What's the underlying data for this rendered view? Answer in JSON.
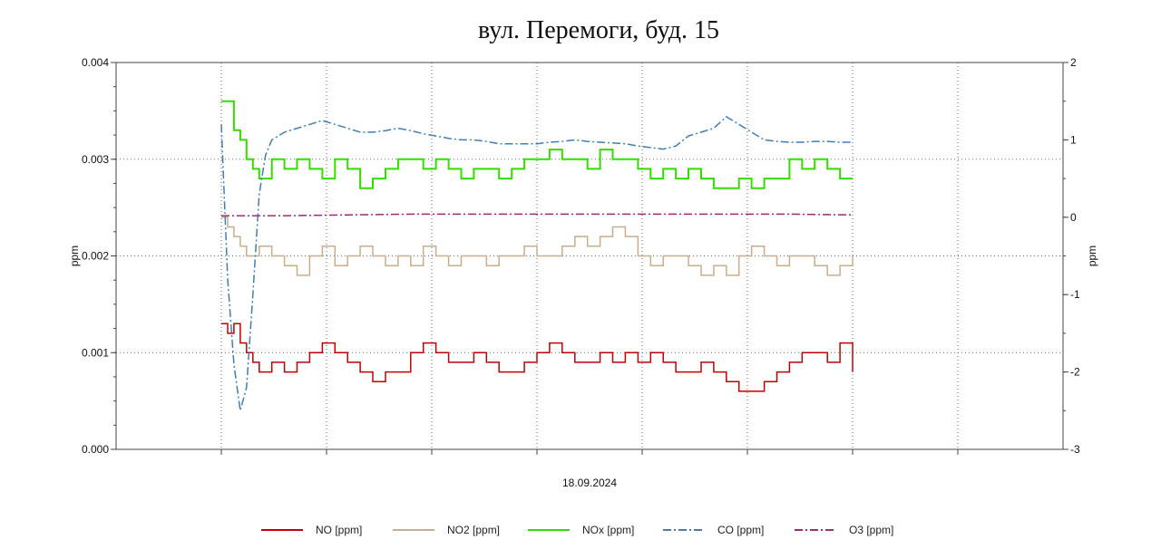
{
  "chart_data": {
    "type": "line",
    "title": "вул. Перемоги, буд. 15",
    "xlabel": "18.09.2024",
    "ylabel_left": "ppm",
    "ylabel_right": "ppm",
    "ylim_left": [
      0,
      0.004
    ],
    "ylim_right": [
      -3,
      2
    ],
    "left_ticks": [
      "0.000",
      "0.001",
      "0.002",
      "0.003",
      "0.004"
    ],
    "right_ticks": [
      "-3",
      "-2",
      "-1",
      "0",
      "1",
      "2"
    ],
    "grid": true,
    "legend_position": "bottom",
    "x_index_range": [
      0,
      100
    ],
    "series": [
      {
        "name": "NO [ppm]",
        "axis": "left",
        "color": "#c00000",
        "style": "solid",
        "x": [
          0,
          1,
          2,
          3,
          4,
          5,
          6,
          8,
          10,
          12,
          14,
          16,
          18,
          20,
          22,
          24,
          26,
          28,
          30,
          32,
          34,
          36,
          38,
          40,
          42,
          44,
          46,
          48,
          50,
          52,
          54,
          56,
          58,
          60,
          62,
          64,
          66,
          68,
          70,
          72,
          74,
          76,
          78,
          80,
          82,
          84,
          86,
          88,
          90,
          92,
          94,
          96,
          98,
          100
        ],
        "values": [
          0.0013,
          0.0012,
          0.0013,
          0.0011,
          0.001,
          0.0009,
          0.0008,
          0.0009,
          0.0008,
          0.0009,
          0.001,
          0.0011,
          0.001,
          0.0009,
          0.0008,
          0.0007,
          0.0008,
          0.0008,
          0.001,
          0.0011,
          0.001,
          0.0009,
          0.0009,
          0.001,
          0.0009,
          0.0008,
          0.0008,
          0.0009,
          0.001,
          0.0011,
          0.001,
          0.0009,
          0.0009,
          0.001,
          0.0009,
          0.001,
          0.0009,
          0.001,
          0.0009,
          0.0008,
          0.0008,
          0.0009,
          0.0008,
          0.0007,
          0.0006,
          0.0006,
          0.0007,
          0.0008,
          0.0009,
          0.001,
          0.001,
          0.0009,
          0.0011,
          0.0008
        ]
      },
      {
        "name": "NO2 [ppm]",
        "axis": "left",
        "color": "#c8ae8a",
        "style": "solid",
        "x": [
          0,
          1,
          2,
          3,
          4,
          6,
          8,
          10,
          12,
          14,
          16,
          18,
          20,
          22,
          24,
          26,
          28,
          30,
          32,
          34,
          36,
          38,
          40,
          42,
          44,
          46,
          48,
          50,
          52,
          54,
          56,
          58,
          60,
          62,
          64,
          66,
          68,
          70,
          72,
          74,
          76,
          78,
          80,
          82,
          84,
          86,
          88,
          90,
          92,
          94,
          96,
          98,
          100
        ],
        "values": [
          0.0024,
          0.0023,
          0.0022,
          0.0021,
          0.002,
          0.0021,
          0.002,
          0.0019,
          0.0018,
          0.002,
          0.0021,
          0.0019,
          0.002,
          0.0021,
          0.002,
          0.0019,
          0.002,
          0.0019,
          0.0021,
          0.002,
          0.0019,
          0.002,
          0.002,
          0.0019,
          0.002,
          0.002,
          0.0021,
          0.002,
          0.002,
          0.0021,
          0.0022,
          0.0021,
          0.0022,
          0.0023,
          0.0022,
          0.002,
          0.0019,
          0.002,
          0.002,
          0.0019,
          0.0018,
          0.0019,
          0.0018,
          0.002,
          0.0021,
          0.002,
          0.0019,
          0.002,
          0.002,
          0.0019,
          0.0018,
          0.0019,
          0.002
        ]
      },
      {
        "name": "NOx [ppm]",
        "axis": "left",
        "color": "#33dd00",
        "style": "solid",
        "x": [
          0,
          1,
          2,
          3,
          4,
          5,
          6,
          8,
          10,
          12,
          14,
          16,
          18,
          20,
          22,
          24,
          26,
          28,
          30,
          32,
          34,
          36,
          38,
          40,
          42,
          44,
          46,
          48,
          50,
          52,
          54,
          56,
          58,
          60,
          62,
          64,
          66,
          68,
          70,
          72,
          74,
          76,
          78,
          80,
          82,
          84,
          86,
          88,
          90,
          92,
          94,
          96,
          98,
          100
        ],
        "values": [
          0.0036,
          0.0036,
          0.0033,
          0.0032,
          0.003,
          0.0029,
          0.0028,
          0.003,
          0.0029,
          0.003,
          0.0029,
          0.0028,
          0.003,
          0.0029,
          0.0027,
          0.0028,
          0.0029,
          0.003,
          0.003,
          0.0029,
          0.003,
          0.0029,
          0.0028,
          0.0029,
          0.0029,
          0.0028,
          0.0029,
          0.003,
          0.003,
          0.0031,
          0.003,
          0.003,
          0.0029,
          0.0031,
          0.003,
          0.003,
          0.0029,
          0.0028,
          0.0029,
          0.0028,
          0.0029,
          0.0028,
          0.0027,
          0.0027,
          0.0028,
          0.0027,
          0.0028,
          0.0028,
          0.003,
          0.0029,
          0.003,
          0.0029,
          0.0028,
          0.0028
        ]
      },
      {
        "name": "CO [ppm]",
        "axis": "right",
        "color": "#3f7fb5",
        "style": "dashdot",
        "x": [
          0,
          1,
          2,
          3,
          4,
          5,
          6,
          7,
          8,
          10,
          12,
          14,
          16,
          18,
          20,
          22,
          24,
          26,
          28,
          30,
          32,
          34,
          36,
          38,
          40,
          42,
          44,
          46,
          48,
          50,
          52,
          54,
          56,
          58,
          60,
          62,
          64,
          66,
          68,
          70,
          72,
          74,
          76,
          78,
          80,
          82,
          84,
          86,
          88,
          90,
          92,
          94,
          96,
          98,
          100
        ],
        "values": [
          1.2,
          -0.8,
          -1.9,
          -2.5,
          -2.2,
          -1.0,
          0.3,
          0.8,
          1.0,
          1.1,
          1.15,
          1.2,
          1.25,
          1.2,
          1.15,
          1.1,
          1.1,
          1.12,
          1.15,
          1.12,
          1.08,
          1.05,
          1.02,
          1.0,
          1.0,
          0.98,
          0.95,
          0.95,
          0.95,
          0.95,
          0.97,
          0.98,
          1.0,
          0.98,
          0.97,
          0.96,
          0.95,
          0.92,
          0.9,
          0.88,
          0.92,
          1.05,
          1.1,
          1.15,
          1.3,
          1.2,
          1.1,
          1.0,
          0.98,
          0.97,
          0.97,
          0.98,
          0.98,
          0.97,
          0.97
        ]
      },
      {
        "name": "O3 [ppm]",
        "axis": "right",
        "color": "#9e2a78",
        "style": "dashdot",
        "x": [
          0,
          10,
          20,
          30,
          40,
          50,
          60,
          70,
          80,
          90,
          100
        ],
        "values": [
          0.02,
          0.02,
          0.03,
          0.04,
          0.04,
          0.04,
          0.04,
          0.04,
          0.04,
          0.04,
          0.03
        ]
      }
    ]
  }
}
